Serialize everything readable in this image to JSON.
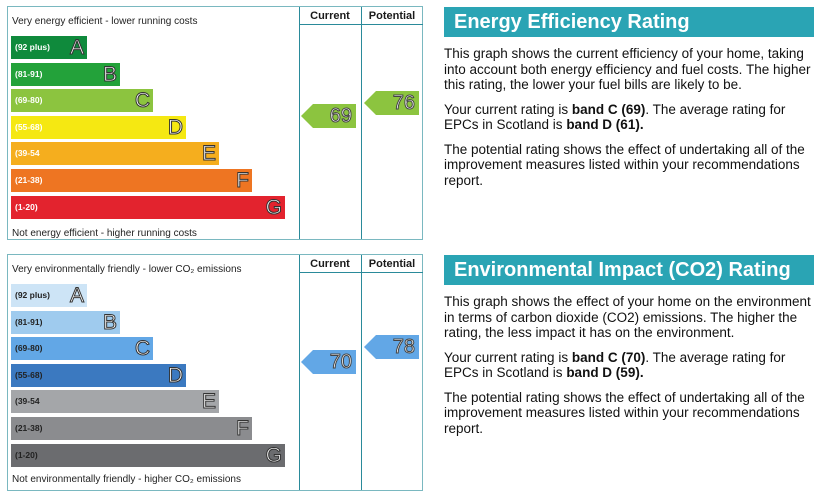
{
  "chart_data": [
    {
      "type": "bar",
      "top_caption": "Very energy efficient - lower running costs",
      "bottom_caption": "Not energy efficient - higher running costs",
      "column_headers": [
        "Current",
        "Potential"
      ],
      "bands": [
        {
          "letter": "A",
          "range": "(92 plus)",
          "color": "#0f8a3c"
        },
        {
          "letter": "B",
          "range": "(81-91)",
          "color": "#23a23a"
        },
        {
          "letter": "C",
          "range": "(69-80)",
          "color": "#8cc43f"
        },
        {
          "letter": "D",
          "range": "(55-68)",
          "color": "#f5e812"
        },
        {
          "letter": "E",
          "range": "(39-54",
          "color": "#f5ae1e"
        },
        {
          "letter": "F",
          "range": "(21-38)",
          "color": "#ee7522"
        },
        {
          "letter": "G",
          "range": "(1-20)",
          "color": "#e3232e"
        }
      ],
      "current": {
        "value": "69",
        "color": "#8cc43f"
      },
      "potential": {
        "value": "76",
        "color": "#8cc43f"
      }
    },
    {
      "type": "bar",
      "top_caption": "Very environmentally friendly - lower CO₂ emissions",
      "bottom_caption": "Not environmentally friendly - higher CO₂ emissions",
      "column_headers": [
        "Current",
        "Potential"
      ],
      "bands": [
        {
          "letter": "A",
          "range": "(92 plus)",
          "color": "#cde4f6"
        },
        {
          "letter": "B",
          "range": "(81-91)",
          "color": "#9fcbee"
        },
        {
          "letter": "C",
          "range": "(69-80)",
          "color": "#62a7e6"
        },
        {
          "letter": "D",
          "range": "(55-68)",
          "color": "#3b79c0"
        },
        {
          "letter": "E",
          "range": "(39-54",
          "color": "#a4a6a9"
        },
        {
          "letter": "F",
          "range": "(21-38)",
          "color": "#8b8c8f"
        },
        {
          "letter": "G",
          "range": "(1-20)",
          "color": "#6b6c6f"
        }
      ],
      "current": {
        "value": "70",
        "color": "#62a7e6"
      },
      "potential": {
        "value": "78",
        "color": "#62a7e6"
      }
    }
  ],
  "energy_panel": {
    "title": "Energy Efficiency Rating",
    "p1": "This graph shows the current efficiency of your home, taking into account both energy efficiency and fuel costs. The higher this rating, the lower your fuel bills are likely to be.",
    "p2_pre": "Your current rating is ",
    "p2_bold1": "band C (69)",
    "p2_mid": ". The average rating for EPCs in Scotland is ",
    "p2_bold2": "band D (61).",
    "p3": "The potential rating shows the effect of undertaking all of the improvement measures listed within your recommendations report."
  },
  "env_panel": {
    "title": "Environmental Impact (CO2) Rating",
    "p1": "This graph shows the effect of your home on the environment in terms of carbon dioxide (CO2) emissions. The higher the rating, the less impact it has on the environment.",
    "p2_pre": "Your current rating is ",
    "p2_bold1": "band C (70)",
    "p2_mid": ". The average rating for EPCs in Scotland is ",
    "p2_bold2": "band D (59).",
    "p3": "The potential rating shows the effect of undertaking all of the improvement measures listed within your recommendations report."
  }
}
